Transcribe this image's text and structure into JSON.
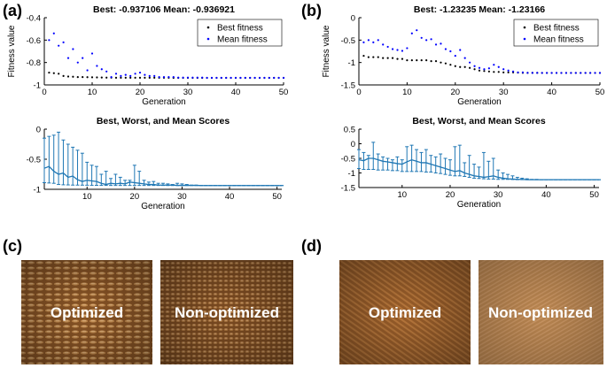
{
  "panels": {
    "a": "(a)",
    "b": "(b)",
    "c": "(c)",
    "d": "(d)"
  },
  "photos": {
    "c_left": "Optimized",
    "c_right": "Non-optimized",
    "d_left": "Optimized",
    "d_right": "Non-optimized"
  },
  "colors": {
    "best": "#000000",
    "mean": "#0000ff",
    "scores": "#1f77b4"
  },
  "chart_data": [
    {
      "id": "a_top",
      "type": "scatter",
      "title": "Best: -0.937106 Mean: -0.936921",
      "xlabel": "Generation",
      "ylabel": "Fitness value",
      "xlim": [
        0,
        50
      ],
      "ylim": [
        -1,
        -0.4
      ],
      "xticks": [
        0,
        10,
        20,
        30,
        40,
        50
      ],
      "yticks": [
        -1,
        -0.8,
        -0.6,
        -0.4
      ],
      "legend_position": "top-right",
      "series": [
        {
          "name": "Best fitness",
          "x": [
            1,
            2,
            3,
            4,
            5,
            6,
            7,
            8,
            9,
            10,
            11,
            12,
            13,
            14,
            15,
            16,
            17,
            18,
            19,
            20,
            21,
            22,
            23,
            24,
            25,
            26,
            27,
            28,
            29,
            30,
            31,
            32,
            33,
            34,
            35,
            36,
            37,
            38,
            39,
            40,
            41,
            42,
            43,
            44,
            45,
            46,
            47,
            48,
            49,
            50
          ],
          "values": [
            -0.89,
            -0.895,
            -0.9,
            -0.92,
            -0.925,
            -0.927,
            -0.93,
            -0.93,
            -0.931,
            -0.932,
            -0.933,
            -0.934,
            -0.935,
            -0.935,
            -0.936,
            -0.936,
            -0.936,
            -0.936,
            -0.936,
            -0.936,
            -0.936,
            -0.936,
            -0.936,
            -0.936,
            -0.936,
            -0.936,
            -0.937,
            -0.937,
            -0.937,
            -0.937,
            -0.937,
            -0.937,
            -0.937,
            -0.937,
            -0.937,
            -0.937,
            -0.937,
            -0.937,
            -0.937,
            -0.937,
            -0.937,
            -0.937,
            -0.937,
            -0.937,
            -0.937,
            -0.937,
            -0.937,
            -0.937,
            -0.937,
            -0.937
          ]
        },
        {
          "name": "Mean fitness",
          "x": [
            1,
            2,
            3,
            4,
            5,
            6,
            7,
            8,
            9,
            10,
            11,
            12,
            13,
            14,
            15,
            16,
            17,
            18,
            19,
            20,
            21,
            22,
            23,
            24,
            25,
            26,
            27,
            28,
            29,
            30,
            31,
            32,
            33,
            34,
            35,
            36,
            37,
            38,
            39,
            40,
            41,
            42,
            43,
            44,
            45,
            46,
            47,
            48,
            49,
            50
          ],
          "values": [
            -0.6,
            -0.54,
            -0.65,
            -0.62,
            -0.76,
            -0.68,
            -0.8,
            -0.76,
            -0.87,
            -0.72,
            -0.83,
            -0.86,
            -0.88,
            -0.93,
            -0.9,
            -0.92,
            -0.91,
            -0.92,
            -0.9,
            -0.89,
            -0.91,
            -0.92,
            -0.92,
            -0.93,
            -0.93,
            -0.93,
            -0.93,
            -0.935,
            -0.935,
            -0.935,
            -0.935,
            -0.935,
            -0.935,
            -0.937,
            -0.937,
            -0.937,
            -0.937,
            -0.937,
            -0.937,
            -0.937,
            -0.937,
            -0.937,
            -0.937,
            -0.937,
            -0.937,
            -0.937,
            -0.937,
            -0.937,
            -0.937,
            -0.937
          ]
        }
      ]
    },
    {
      "id": "a_bottom",
      "type": "line",
      "title": "Best, Worst, and Mean Scores",
      "xlabel": "Generation",
      "ylabel": "",
      "xlim": [
        1,
        51
      ],
      "ylim": [
        -1,
        0
      ],
      "xticks": [
        10,
        20,
        30,
        40,
        50
      ],
      "yticks": [
        -1,
        -0.5,
        0
      ],
      "x": [
        1,
        2,
        3,
        4,
        5,
        6,
        7,
        8,
        9,
        10,
        11,
        12,
        13,
        14,
        15,
        16,
        17,
        18,
        19,
        20,
        21,
        22,
        23,
        24,
        25,
        26,
        27,
        28,
        29,
        30,
        31,
        32,
        33,
        34,
        35,
        36,
        37,
        38,
        39,
        40,
        41,
        42,
        43,
        44,
        45,
        46,
        47,
        48,
        49,
        50,
        51
      ],
      "series": [
        {
          "name": "Mean",
          "values": [
            -0.65,
            -0.62,
            -0.7,
            -0.75,
            -0.73,
            -0.8,
            -0.78,
            -0.84,
            -0.87,
            -0.85,
            -0.86,
            -0.87,
            -0.9,
            -0.92,
            -0.9,
            -0.91,
            -0.9,
            -0.91,
            -0.88,
            -0.89,
            -0.9,
            -0.91,
            -0.92,
            -0.92,
            -0.93,
            -0.93,
            -0.93,
            -0.93,
            -0.935,
            -0.935,
            -0.935,
            -0.935,
            -0.935,
            -0.937,
            -0.937,
            -0.937,
            -0.937,
            -0.937,
            -0.937,
            -0.937,
            -0.937,
            -0.937,
            -0.937,
            -0.937,
            -0.937,
            -0.937,
            -0.937,
            -0.937,
            -0.937,
            -0.937,
            -0.937
          ]
        },
        {
          "name": "Worst",
          "values": [
            -0.15,
            -0.12,
            -0.1,
            -0.05,
            -0.18,
            -0.25,
            -0.3,
            -0.35,
            -0.4,
            -0.55,
            -0.6,
            -0.62,
            -0.75,
            -0.7,
            -0.82,
            -0.75,
            -0.8,
            -0.85,
            -0.85,
            -0.6,
            -0.7,
            -0.85,
            -0.88,
            -0.87,
            -0.9,
            -0.9,
            -0.91,
            -0.92,
            -0.9,
            -0.91,
            -0.92,
            -0.93,
            -0.93,
            -0.935,
            -0.935,
            -0.935,
            -0.935,
            -0.937,
            -0.937,
            -0.937,
            -0.937,
            -0.937,
            -0.937,
            -0.937,
            -0.937,
            -0.937,
            -0.937,
            -0.937,
            -0.937,
            -0.937,
            -0.937
          ]
        },
        {
          "name": "Best",
          "values": [
            -0.89,
            -0.895,
            -0.9,
            -0.92,
            -0.925,
            -0.927,
            -0.93,
            -0.93,
            -0.931,
            -0.932,
            -0.933,
            -0.934,
            -0.935,
            -0.935,
            -0.936,
            -0.936,
            -0.936,
            -0.936,
            -0.936,
            -0.936,
            -0.936,
            -0.936,
            -0.936,
            -0.936,
            -0.936,
            -0.936,
            -0.937,
            -0.937,
            -0.937,
            -0.937,
            -0.937,
            -0.937,
            -0.937,
            -0.937,
            -0.937,
            -0.937,
            -0.937,
            -0.937,
            -0.937,
            -0.937,
            -0.937,
            -0.937,
            -0.937,
            -0.937,
            -0.937,
            -0.937,
            -0.937,
            -0.937,
            -0.937,
            -0.937,
            -0.937
          ]
        }
      ]
    },
    {
      "id": "b_top",
      "type": "scatter",
      "title": "Best: -1.23235 Mean: -1.23166",
      "xlabel": "Generation",
      "ylabel": "Fitness value",
      "xlim": [
        0,
        50
      ],
      "ylim": [
        -1.5,
        0
      ],
      "xticks": [
        0,
        10,
        20,
        30,
        40,
        50
      ],
      "yticks": [
        -1.5,
        -1,
        -0.5,
        0
      ],
      "legend_position": "top-right",
      "series": [
        {
          "name": "Best fitness",
          "x": [
            1,
            2,
            3,
            4,
            5,
            6,
            7,
            8,
            9,
            10,
            11,
            12,
            13,
            14,
            15,
            16,
            17,
            18,
            19,
            20,
            21,
            22,
            23,
            24,
            25,
            26,
            27,
            28,
            29,
            30,
            31,
            32,
            33,
            34,
            35,
            36,
            37,
            38,
            39,
            40,
            41,
            42,
            43,
            44,
            45,
            46,
            47,
            48,
            49,
            50
          ],
          "values": [
            -0.85,
            -0.88,
            -0.88,
            -0.88,
            -0.9,
            -0.9,
            -0.9,
            -0.92,
            -0.92,
            -0.95,
            -0.95,
            -0.95,
            -0.95,
            -0.95,
            -0.97,
            -0.97,
            -1.0,
            -1.02,
            -1.05,
            -1.08,
            -1.1,
            -1.1,
            -1.12,
            -1.15,
            -1.18,
            -1.19,
            -1.2,
            -1.21,
            -1.21,
            -1.22,
            -1.22,
            -1.22,
            -1.225,
            -1.23,
            -1.23,
            -1.23,
            -1.23,
            -1.232,
            -1.232,
            -1.232,
            -1.232,
            -1.232,
            -1.232,
            -1.232,
            -1.232,
            -1.232,
            -1.232,
            -1.232,
            -1.232,
            -1.232
          ]
        },
        {
          "name": "Mean fitness",
          "x": [
            1,
            2,
            3,
            4,
            5,
            6,
            7,
            8,
            9,
            10,
            11,
            12,
            13,
            14,
            15,
            16,
            17,
            18,
            19,
            20,
            21,
            22,
            23,
            24,
            25,
            26,
            27,
            28,
            29,
            30,
            31,
            32,
            33,
            34,
            35,
            36,
            37,
            38,
            39,
            40,
            41,
            42,
            43,
            44,
            45,
            46,
            47,
            48,
            49,
            50
          ],
          "values": [
            -0.55,
            -0.5,
            -0.55,
            -0.5,
            -0.6,
            -0.65,
            -0.7,
            -0.72,
            -0.74,
            -0.68,
            -0.35,
            -0.28,
            -0.45,
            -0.5,
            -0.48,
            -0.6,
            -0.58,
            -0.7,
            -0.75,
            -0.85,
            -0.72,
            -0.9,
            -1.0,
            -1.08,
            -1.12,
            -1.15,
            -1.13,
            -1.05,
            -1.1,
            -1.15,
            -1.18,
            -1.2,
            -1.22,
            -1.22,
            -1.23,
            -1.23,
            -1.23,
            -1.232,
            -1.232,
            -1.232,
            -1.232,
            -1.232,
            -1.232,
            -1.232,
            -1.232,
            -1.232,
            -1.232,
            -1.232,
            -1.232,
            -1.232
          ]
        }
      ]
    },
    {
      "id": "b_bottom",
      "type": "line",
      "title": "Best, Worst, and Mean Scores",
      "xlabel": "Generation",
      "ylabel": "",
      "xlim": [
        1,
        51
      ],
      "ylim": [
        -1.5,
        0.5
      ],
      "xticks": [
        10,
        20,
        30,
        40,
        50
      ],
      "yticks": [
        -1.5,
        -1,
        -0.5,
        0,
        0.5
      ],
      "x": [
        1,
        2,
        3,
        4,
        5,
        6,
        7,
        8,
        9,
        10,
        11,
        12,
        13,
        14,
        15,
        16,
        17,
        18,
        19,
        20,
        21,
        22,
        23,
        24,
        25,
        26,
        27,
        28,
        29,
        30,
        31,
        32,
        33,
        34,
        35,
        36,
        37,
        38,
        39,
        40,
        41,
        42,
        43,
        44,
        45,
        46,
        47,
        48,
        49,
        50,
        51
      ],
      "series": [
        {
          "name": "Mean",
          "values": [
            -0.55,
            -0.58,
            -0.5,
            -0.5,
            -0.55,
            -0.6,
            -0.62,
            -0.65,
            -0.68,
            -0.7,
            -0.62,
            -0.55,
            -0.6,
            -0.65,
            -0.65,
            -0.7,
            -0.75,
            -0.8,
            -0.85,
            -0.9,
            -0.95,
            -0.92,
            -1.0,
            -1.05,
            -1.1,
            -1.12,
            -1.15,
            -1.13,
            -1.1,
            -1.15,
            -1.18,
            -1.2,
            -1.21,
            -1.22,
            -1.22,
            -1.23,
            -1.23,
            -1.23,
            -1.232,
            -1.232,
            -1.232,
            -1.232,
            -1.232,
            -1.232,
            -1.232,
            -1.232,
            -1.232,
            -1.232,
            -1.232,
            -1.232,
            -1.232
          ]
        },
        {
          "name": "Worst",
          "values": [
            -0.2,
            -0.3,
            -0.4,
            0.05,
            -0.35,
            -0.45,
            -0.5,
            -0.55,
            -0.45,
            -0.55,
            -0.1,
            -0.05,
            -0.2,
            -0.3,
            -0.2,
            -0.4,
            -0.45,
            -0.35,
            -0.5,
            -0.55,
            -0.1,
            -0.05,
            -0.65,
            -0.4,
            -0.7,
            -0.8,
            -0.3,
            -0.6,
            -0.5,
            -0.9,
            -1.0,
            -1.05,
            -1.1,
            -1.15,
            -1.18,
            -1.2,
            -1.22,
            -1.22,
            -1.23,
            -1.23,
            -1.23,
            -1.232,
            -1.232,
            -1.232,
            -1.232,
            -1.232,
            -1.232,
            -1.232,
            -1.232,
            -1.232,
            -1.232
          ]
        },
        {
          "name": "Best",
          "values": [
            -0.85,
            -0.88,
            -0.88,
            -0.88,
            -0.9,
            -0.9,
            -0.9,
            -0.92,
            -0.92,
            -0.95,
            -0.95,
            -0.95,
            -0.95,
            -0.95,
            -0.97,
            -0.97,
            -1.0,
            -1.02,
            -1.05,
            -1.08,
            -1.1,
            -1.1,
            -1.12,
            -1.15,
            -1.18,
            -1.19,
            -1.2,
            -1.21,
            -1.21,
            -1.22,
            -1.22,
            -1.22,
            -1.225,
            -1.23,
            -1.23,
            -1.23,
            -1.23,
            -1.232,
            -1.232,
            -1.232,
            -1.232,
            -1.232,
            -1.232,
            -1.232,
            -1.232,
            -1.232,
            -1.232,
            -1.232,
            -1.232,
            -1.232,
            -1.232
          ]
        }
      ]
    }
  ]
}
